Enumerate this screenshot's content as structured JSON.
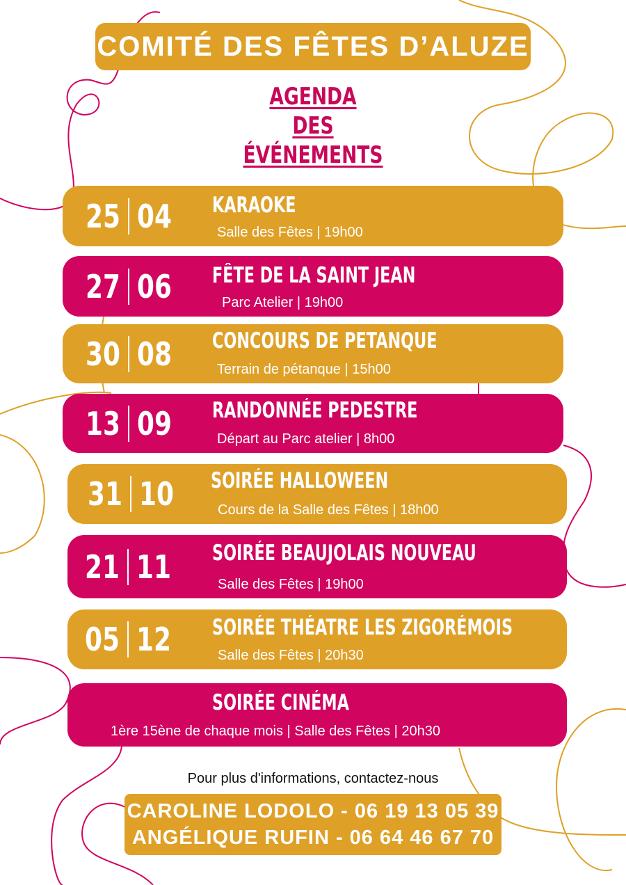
{
  "header": {
    "title": "COMITÉ DES FÊTES D’ALUZE"
  },
  "agenda": {
    "line1": "AGENDA",
    "line2": "DES",
    "line3": "ÉVÉNEMENTS"
  },
  "colors": {
    "gold": "#DFA028",
    "magenta": "#D1045F",
    "title_pink": "#C8085A"
  },
  "events": [
    {
      "day": "25",
      "month": "04",
      "title": "KARAOKE",
      "details": "Salle des Fêtes | 19h00"
    },
    {
      "day": "27",
      "month": "06",
      "title": "FÊTE DE LA SAINT JEAN",
      "details": "Parc Atelier | 19h00"
    },
    {
      "day": "30",
      "month": "08",
      "title": "CONCOURS DE PETANQUE",
      "details": "Terrain de pétanque | 15h00"
    },
    {
      "day": "13",
      "month": "09",
      "title": "RANDONNÉE PEDESTRE",
      "details": "Départ au Parc atelier | 8h00"
    },
    {
      "day": "31",
      "month": "10",
      "title": "SOIRÉE HALLOWEEN",
      "details": "Cours de la Salle des Fêtes | 18h00"
    },
    {
      "day": "21",
      "month": "11",
      "title": "SOIRÉE BEAUJOLAIS NOUVEAU",
      "details": "Salle des Fêtes | 19h00"
    },
    {
      "day": "05",
      "month": "12",
      "title": "SOIRÉE THÉATRE LES ZIGORÉMOIS",
      "details": "Salle des Fêtes | 20h30"
    },
    {
      "title": "SOIRÉE CINÉMA",
      "details": "1ère 15ène de chaque mois | Salle des Fêtes | 20h30"
    }
  ],
  "contact": {
    "label": "Pour plus d'informations, contactez-nous",
    "line1": "CAROLINE LODOLO - 06 19 13 05 39",
    "line2": "ANGÉLIQUE RUFIN - 06 64 46 67 70"
  }
}
